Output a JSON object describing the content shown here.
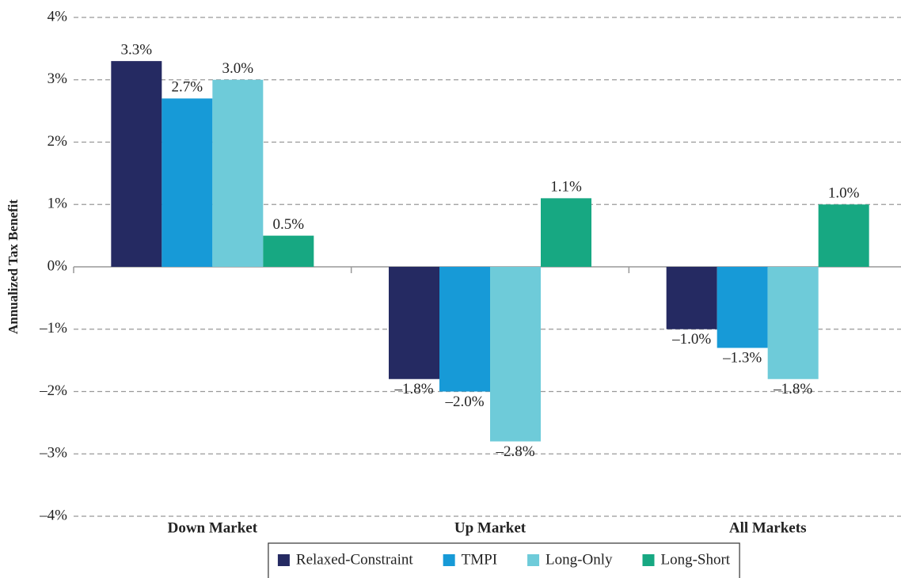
{
  "chart_data": {
    "type": "bar",
    "y_label": "Annualized Tax Benefit",
    "categories": [
      "Down Market",
      "Up Market",
      "All Markets"
    ],
    "series": [
      {
        "name": "Relaxed-Constraint",
        "color": "#252a62",
        "values": [
          3.3,
          -1.8,
          -1.0
        ],
        "value_labels": [
          "3.3%",
          "–1.8%",
          "–1.0%"
        ]
      },
      {
        "name": "TMPI",
        "color": "#179ad7",
        "values": [
          2.7,
          -2.0,
          -1.3
        ],
        "value_labels": [
          "2.7%",
          "–2.0%",
          "–1.3%"
        ]
      },
      {
        "name": "Long-Only",
        "color": "#6ecbd9",
        "values": [
          3.0,
          -2.8,
          -1.8
        ],
        "value_labels": [
          "3.0%",
          "–2.8%",
          "–1.8%"
        ]
      },
      {
        "name": "Long-Short",
        "color": "#17a882",
        "values": [
          0.5,
          1.1,
          1.0
        ],
        "value_labels": [
          "0.5%",
          "1.1%",
          "1.0%"
        ]
      }
    ],
    "ylim": [
      -4,
      4
    ],
    "yticks": [
      {
        "value": 4,
        "label": "4%"
      },
      {
        "value": 3,
        "label": "3%"
      },
      {
        "value": 2,
        "label": "2%"
      },
      {
        "value": 1,
        "label": "1%"
      },
      {
        "value": 0,
        "label": "0%"
      },
      {
        "value": -1,
        "label": "–1%"
      },
      {
        "value": -2,
        "label": "–2%"
      },
      {
        "value": -3,
        "label": "–3%"
      },
      {
        "value": -4,
        "label": "–4%"
      }
    ],
    "grid": true,
    "legend": "bottom"
  }
}
